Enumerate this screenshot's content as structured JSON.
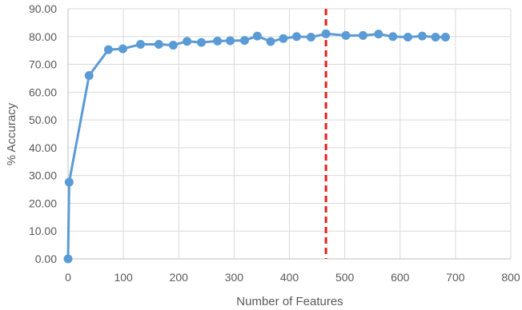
{
  "chart_data": {
    "type": "scatter",
    "title": "",
    "xlabel": "Number of Features",
    "ylabel": "% Accuracy",
    "xlim": [
      0,
      800
    ],
    "ylim": [
      0,
      90
    ],
    "x_ticks": [
      "0",
      "100",
      "200",
      "300",
      "400",
      "500",
      "600",
      "700",
      "800"
    ],
    "y_ticks": [
      "0.00",
      "10.00",
      "20.00",
      "30.00",
      "40.00",
      "50.00",
      "60.00",
      "70.00",
      "80.00",
      "90.00"
    ],
    "grid": "on",
    "legend": "none",
    "series": [
      {
        "color": "#5b9bd5",
        "points": [
          [
            0,
            0.0
          ],
          [
            2,
            27.6
          ],
          [
            38,
            66.0
          ],
          [
            73,
            75.3
          ],
          [
            99,
            75.6
          ],
          [
            131,
            77.2
          ],
          [
            164,
            77.2
          ],
          [
            190,
            76.9
          ],
          [
            215,
            78.3
          ],
          [
            241,
            77.9
          ],
          [
            270,
            78.4
          ],
          [
            293,
            78.5
          ],
          [
            319,
            78.6
          ],
          [
            342,
            80.2
          ],
          [
            366,
            78.2
          ],
          [
            389,
            79.3
          ],
          [
            413,
            80.0
          ],
          [
            439,
            79.8
          ],
          [
            466,
            81.0
          ],
          [
            502,
            80.4
          ],
          [
            533,
            80.4
          ],
          [
            561,
            80.9
          ],
          [
            587,
            80.0
          ],
          [
            614,
            79.8
          ],
          [
            640,
            80.2
          ],
          [
            664,
            79.8
          ],
          [
            682,
            79.8
          ]
        ]
      }
    ],
    "reference_line": {
      "axis": "x",
      "value": 466,
      "color": "#e3221c",
      "style": "dashed"
    },
    "colors": {
      "gridline": "#d9d9d9",
      "axis": "#bfbfbf",
      "text": "#595959"
    }
  }
}
